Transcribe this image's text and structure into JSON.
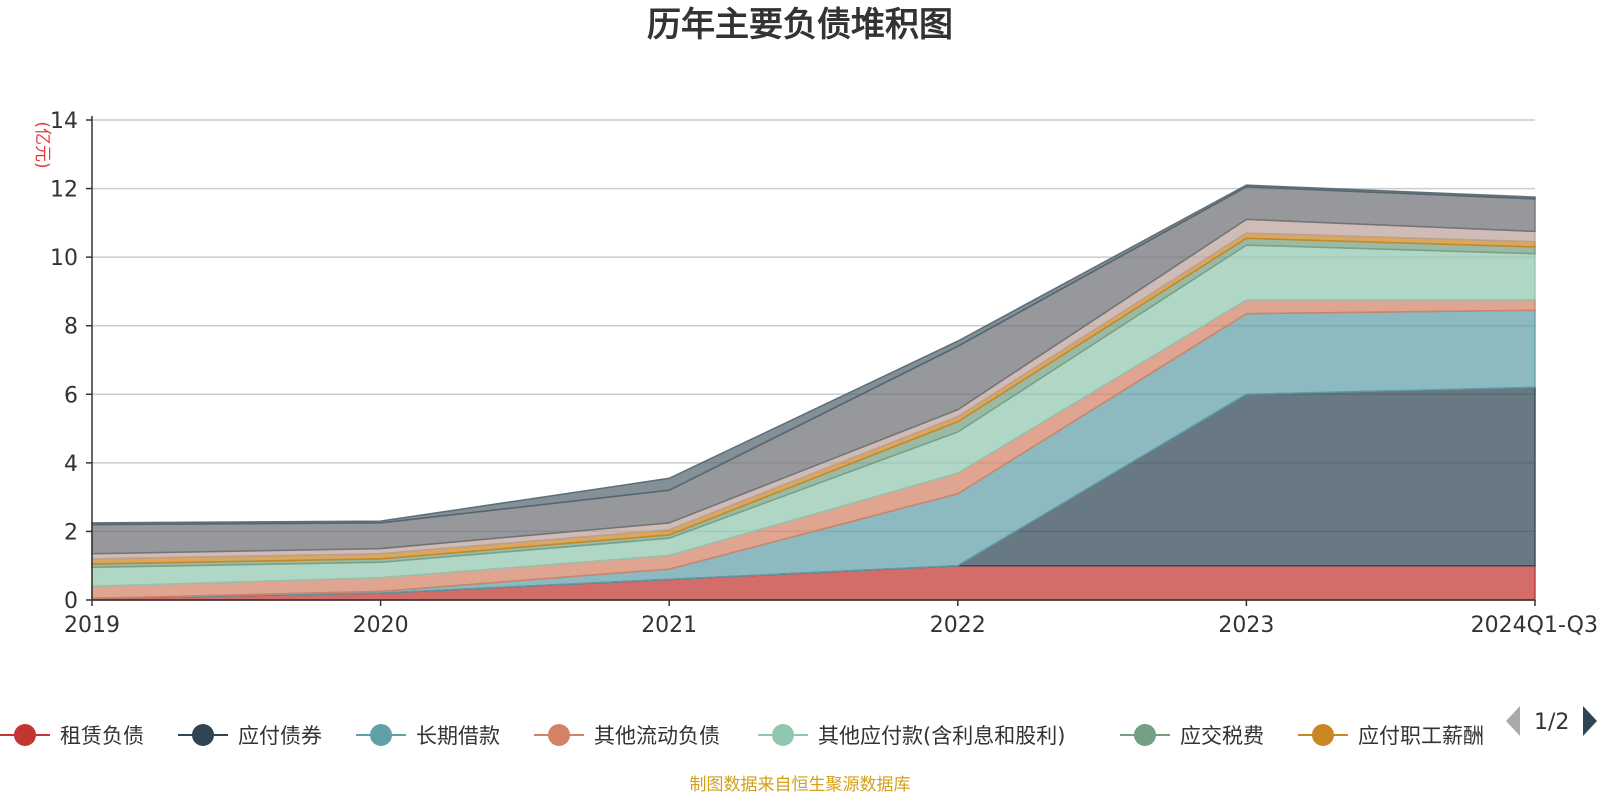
{
  "chart_data": {
    "type": "area",
    "stacked": true,
    "title": "历年主要负债堆积图",
    "unit_label": "(亿元)",
    "categories": [
      "2019",
      "2020",
      "2021",
      "2022",
      "2023",
      "2024Q1-Q3"
    ],
    "ylim": [
      0,
      14
    ],
    "yticks": [
      0,
      2,
      4,
      6,
      8,
      10,
      12,
      14
    ],
    "grid": true,
    "legend_position": "bottom",
    "series": [
      {
        "name": "租赁负债",
        "color": "#c23531",
        "values": [
          0.05,
          0.2,
          0.6,
          1.0,
          1.0,
          1.0
        ]
      },
      {
        "name": "应付债券",
        "color": "#2f4554",
        "values": [
          0.0,
          0.0,
          0.0,
          0.0,
          5.0,
          5.2
        ]
      },
      {
        "name": "长期借款",
        "color": "#61a0a8",
        "values": [
          0.0,
          0.05,
          0.3,
          2.1,
          2.35,
          2.25
        ]
      },
      {
        "name": "其他流动负债",
        "color": "#d48265",
        "values": [
          0.35,
          0.4,
          0.4,
          0.6,
          0.4,
          0.3
        ]
      },
      {
        "name": "其他应付款(含利息和股利)",
        "color": "#91c7ae",
        "values": [
          0.55,
          0.45,
          0.5,
          1.2,
          1.6,
          1.35
        ]
      },
      {
        "name": "应交税费",
        "color": "#749f83",
        "values": [
          0.1,
          0.1,
          0.1,
          0.3,
          0.2,
          0.2
        ]
      },
      {
        "name": "应付职工薪酬",
        "color": "#ca8622",
        "values": [
          0.15,
          0.15,
          0.15,
          0.15,
          0.15,
          0.15
        ]
      },
      {
        "name": "",
        "color": "#bda29a",
        "values": [
          0.15,
          0.15,
          0.2,
          0.2,
          0.4,
          0.3
        ]
      },
      {
        "name": "",
        "color": "#6e7074",
        "values": [
          0.85,
          0.75,
          0.95,
          1.85,
          0.95,
          0.95
        ]
      },
      {
        "name": "",
        "color": "#546570",
        "values": [
          0.05,
          0.05,
          0.35,
          0.15,
          0.05,
          0.05
        ]
      }
    ]
  },
  "legend": {
    "visible_items": [
      "租赁负债",
      "应付债券",
      "长期借款",
      "其他流动负债",
      "其他应付款(含利息和股利)",
      "应交税费",
      "应付职工薪酬"
    ],
    "page_indicator": "1/2"
  },
  "footer": {
    "source": "制图数据来自恒生聚源数据库"
  },
  "colors": {
    "grid": "#cccccc",
    "axis": "#333333",
    "pager_active": "#2f4554",
    "pager_inactive": "#aaaaaa"
  }
}
